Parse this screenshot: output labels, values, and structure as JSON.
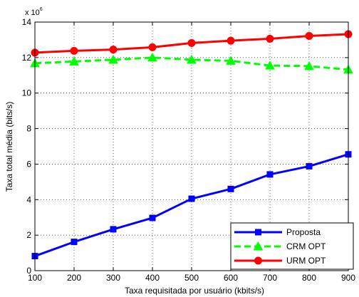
{
  "chart_data": {
    "type": "line",
    "xlabel": "Taxa requisitada por usuário (kbits/s)",
    "ylabel": "Taxa total média (bits/s)",
    "y_multiplier_base": "x 10",
    "y_multiplier_exp": "6",
    "x": [
      100,
      200,
      300,
      400,
      500,
      600,
      700,
      800,
      900
    ],
    "xlim": [
      100,
      900
    ],
    "ylim": [
      0,
      14
    ],
    "x_ticks": [
      "100",
      "200",
      "300",
      "400",
      "500",
      "600",
      "700",
      "800",
      "900"
    ],
    "y_ticks": [
      "0",
      "2",
      "4",
      "6",
      "8",
      "10",
      "12",
      "14"
    ],
    "grid": "dotted",
    "legend_position": "bottom-right",
    "series": [
      {
        "name": "Proposta",
        "color": "#0000ff",
        "dash": "solid",
        "marker": "square",
        "values": [
          0.82,
          1.62,
          2.33,
          2.97,
          4.05,
          4.6,
          5.42,
          5.88,
          6.55
        ]
      },
      {
        "name": "CRM OPT",
        "color": "#00ff00",
        "dash": "dashed",
        "marker": "triangle",
        "values": [
          11.68,
          11.78,
          11.88,
          12.0,
          11.88,
          11.82,
          11.55,
          11.52,
          11.32
        ]
      },
      {
        "name": "URM OPT",
        "color": "#ff0000",
        "dash": "solid",
        "marker": "circle",
        "values": [
          12.28,
          12.38,
          12.45,
          12.58,
          12.82,
          12.95,
          13.06,
          13.22,
          13.32
        ]
      }
    ]
  }
}
